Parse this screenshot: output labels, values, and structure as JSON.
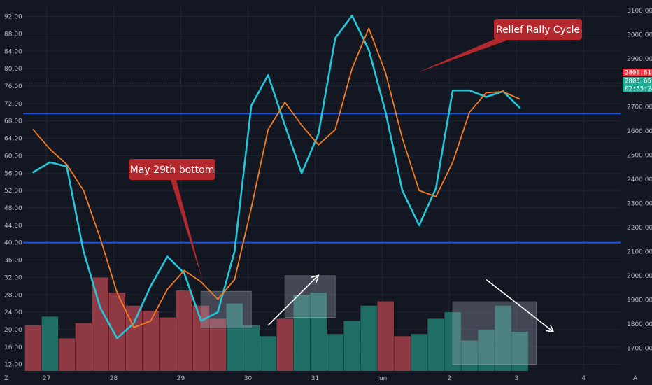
{
  "chart_data": {
    "type": "line",
    "left_axis": {
      "ticks": [
        "12.00",
        "16.00",
        "20.00",
        "24.00",
        "28.00",
        "32.00",
        "36.00",
        "40.00",
        "44.00",
        "48.00",
        "52.00",
        "56.00",
        "60.00",
        "64.00",
        "68.00",
        "72.00",
        "76.00",
        "80.00",
        "84.00",
        "88.00",
        "92.00"
      ],
      "ylim": [
        10.5,
        94.5
      ]
    },
    "right_axis": {
      "ticks": [
        "1700.00",
        "1800.00",
        "1900.00",
        "2000.00",
        "2100.00",
        "2200.00",
        "2300.00",
        "2400.00",
        "2500.00",
        "2600.00",
        "2700.00",
        "2800.00",
        "2900.00",
        "3000.00",
        "3100.00"
      ],
      "ylim": [
        1605,
        3120
      ]
    },
    "x_axis": {
      "ticks": [
        {
          "label": "27",
          "x": 0.2
        },
        {
          "label": "28",
          "x": 1.2
        },
        {
          "label": "29",
          "x": 2.2
        },
        {
          "label": "30",
          "x": 3.2
        },
        {
          "label": "31",
          "x": 4.2
        },
        {
          "label": "Jun",
          "x": 5.2
        },
        {
          "label": "2",
          "x": 6.2
        },
        {
          "label": "3",
          "x": 7.2
        },
        {
          "label": "4",
          "x": 8.2
        }
      ],
      "xlim": [
        -0.15,
        8.75
      ]
    },
    "series": [
      {
        "color": "#22c7d9",
        "points": [
          [
            0.0,
            56.2
          ],
          [
            0.25,
            58.5
          ],
          [
            0.5,
            57.5
          ],
          [
            0.75,
            38
          ],
          [
            1.0,
            25
          ],
          [
            1.25,
            18
          ],
          [
            1.5,
            21.5
          ],
          [
            1.75,
            30
          ],
          [
            2.0,
            36.8
          ],
          [
            2.25,
            33
          ],
          [
            2.5,
            22
          ],
          [
            2.75,
            24
          ],
          [
            3.0,
            38
          ],
          [
            3.25,
            71.5
          ],
          [
            3.5,
            78.5
          ],
          [
            3.75,
            67
          ],
          [
            4.0,
            56
          ],
          [
            4.25,
            65
          ],
          [
            4.5,
            87
          ],
          [
            4.75,
            92.2
          ],
          [
            5.0,
            84.3
          ],
          [
            5.25,
            70
          ],
          [
            5.5,
            52
          ],
          [
            5.75,
            44
          ],
          [
            6.0,
            52.5
          ],
          [
            6.25,
            75
          ],
          [
            6.5,
            75
          ],
          [
            6.75,
            73.5
          ],
          [
            7.0,
            74.8
          ],
          [
            7.25,
            71
          ]
        ]
      },
      {
        "color": "#f57c1f",
        "points": [
          [
            0.0,
            66
          ],
          [
            0.25,
            61.5
          ],
          [
            0.5,
            58
          ],
          [
            0.75,
            52
          ],
          [
            1.0,
            41
          ],
          [
            1.25,
            28.5
          ],
          [
            1.5,
            20.5
          ],
          [
            1.75,
            22
          ],
          [
            2.0,
            29.3
          ],
          [
            2.25,
            33.6
          ],
          [
            2.5,
            31
          ],
          [
            2.75,
            27
          ],
          [
            3.0,
            31.5
          ],
          [
            3.25,
            48
          ],
          [
            3.5,
            66
          ],
          [
            3.75,
            72.3
          ],
          [
            4.0,
            67
          ],
          [
            4.25,
            62.5
          ],
          [
            4.5,
            66
          ],
          [
            4.75,
            80
          ],
          [
            5.0,
            89.3
          ],
          [
            5.25,
            79
          ],
          [
            5.5,
            64
          ],
          [
            5.75,
            52
          ],
          [
            6.0,
            50.6
          ],
          [
            6.25,
            58.5
          ],
          [
            6.5,
            70
          ],
          [
            6.75,
            74.5
          ],
          [
            7.0,
            74.7
          ],
          [
            7.25,
            73
          ]
        ]
      }
    ],
    "volume": {
      "max": 40,
      "bars": [
        {
          "x": 0.0,
          "v": 21,
          "dir": "down"
        },
        {
          "x": 0.25,
          "v": 23,
          "dir": "up"
        },
        {
          "x": 0.5,
          "v": 18,
          "dir": "down"
        },
        {
          "x": 0.75,
          "v": 21.5,
          "dir": "down"
        },
        {
          "x": 1.0,
          "v": 32,
          "dir": "down"
        },
        {
          "x": 1.25,
          "v": 28.5,
          "dir": "down"
        },
        {
          "x": 1.5,
          "v": 25.5,
          "dir": "down"
        },
        {
          "x": 1.75,
          "v": 24.3,
          "dir": "down"
        },
        {
          "x": 2.0,
          "v": 22.8,
          "dir": "down"
        },
        {
          "x": 2.25,
          "v": 29,
          "dir": "down"
        },
        {
          "x": 2.5,
          "v": 25.5,
          "dir": "down"
        },
        {
          "x": 2.75,
          "v": 22.5,
          "dir": "down"
        },
        {
          "x": 3.0,
          "v": 26,
          "dir": "up"
        },
        {
          "x": 3.25,
          "v": 21,
          "dir": "up"
        },
        {
          "x": 3.5,
          "v": 18.5,
          "dir": "up"
        },
        {
          "x": 3.75,
          "v": 22.5,
          "dir": "down"
        },
        {
          "x": 4.0,
          "v": 28,
          "dir": "up"
        },
        {
          "x": 4.25,
          "v": 28.5,
          "dir": "up"
        },
        {
          "x": 4.5,
          "v": 19,
          "dir": "up"
        },
        {
          "x": 4.75,
          "v": 22,
          "dir": "up"
        },
        {
          "x": 5.0,
          "v": 25.5,
          "dir": "up"
        },
        {
          "x": 5.25,
          "v": 26.5,
          "dir": "down"
        },
        {
          "x": 5.5,
          "v": 18.5,
          "dir": "down"
        },
        {
          "x": 5.75,
          "v": 19,
          "dir": "up"
        },
        {
          "x": 6.0,
          "v": 22.5,
          "dir": "up"
        },
        {
          "x": 6.25,
          "v": 24,
          "dir": "up"
        },
        {
          "x": 6.5,
          "v": 17.5,
          "dir": "up"
        },
        {
          "x": 6.75,
          "v": 20,
          "dir": "up"
        },
        {
          "x": 7.0,
          "v": 25.5,
          "dir": "up"
        },
        {
          "x": 7.25,
          "v": 19.5,
          "dir": "up"
        }
      ],
      "colors": {
        "up": "#1f6e66",
        "down": "#8e3a44"
      }
    },
    "horizontal_lines": [
      {
        "y": 69.7,
        "color": "#1e4fd6"
      },
      {
        "y": 40.0,
        "color": "#1e4fd6"
      }
    ],
    "dotted_line": {
      "y": 76.7
    },
    "price_labels": [
      {
        "text": "2808.81",
        "color": "#f23645"
      },
      {
        "text": "2805.65",
        "color": "#22ab94"
      },
      {
        "text": "02:55:24",
        "color": "#22ab94"
      }
    ],
    "callouts": [
      {
        "text": "May 29th bottom",
        "color": "#b3282c"
      },
      {
        "text": "Relief Rally Cycle",
        "color": "#b3282c"
      }
    ],
    "shaded_boxes": [
      {
        "x0": 2.5,
        "x1": 3.25,
        "y0": 20.4,
        "y1": 28.8
      },
      {
        "x0": 3.75,
        "x1": 4.5,
        "y0": 22.8,
        "y1": 32.4
      },
      {
        "x0": 6.25,
        "x1": 7.5,
        "y0": 12.0,
        "y1": 26.4
      }
    ],
    "arrows": [
      {
        "x0": 3.5,
        "y0": 21,
        "x1": 4.25,
        "y1": 32.5
      },
      {
        "x0": 6.75,
        "y0": 31.5,
        "x1": 7.75,
        "y1": 19.5
      }
    ],
    "corner_labels": {
      "left": "Z",
      "right": "A"
    }
  }
}
